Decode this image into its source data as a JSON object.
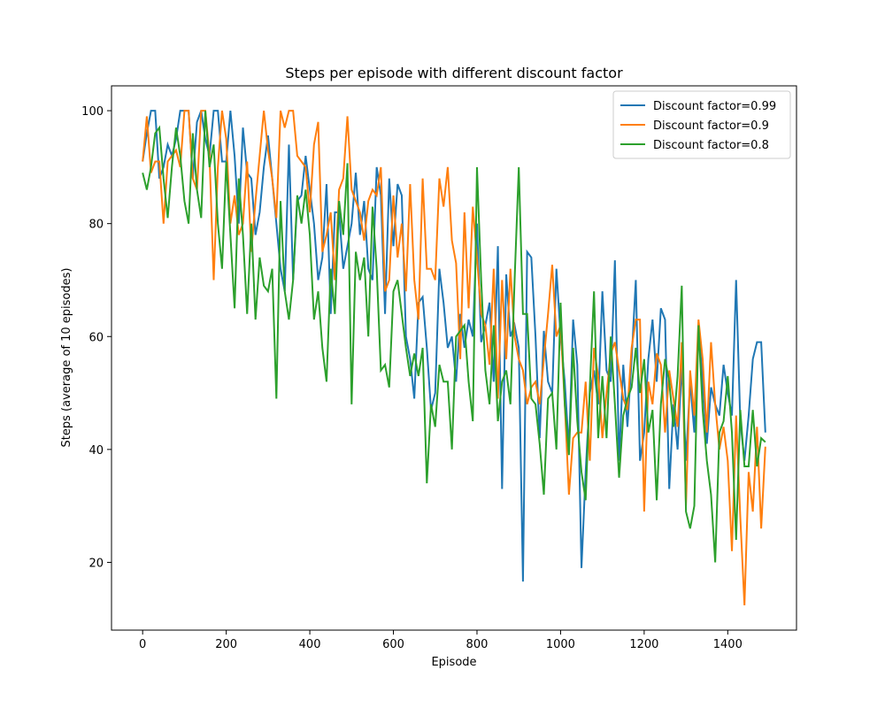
{
  "chart_data": {
    "type": "line",
    "title": "Steps per episode with different discount factor",
    "x_label": "Episode",
    "y_label": "Steps (average of 10 episodes)",
    "x": [
      0,
      10,
      20,
      30,
      40,
      50,
      60,
      70,
      80,
      90,
      100,
      110,
      120,
      130,
      140,
      150,
      160,
      170,
      180,
      190,
      200,
      210,
      220,
      230,
      240,
      250,
      260,
      270,
      280,
      290,
      300,
      310,
      320,
      330,
      340,
      350,
      360,
      370,
      380,
      390,
      400,
      410,
      420,
      430,
      440,
      450,
      460,
      470,
      480,
      490,
      500,
      510,
      520,
      530,
      540,
      550,
      560,
      570,
      580,
      590,
      600,
      610,
      620,
      630,
      640,
      650,
      660,
      670,
      680,
      690,
      700,
      710,
      720,
      730,
      740,
      750,
      760,
      770,
      780,
      790,
      800,
      810,
      820,
      830,
      840,
      850,
      860,
      870,
      880,
      890,
      900,
      910,
      920,
      930,
      940,
      950,
      960,
      970,
      980,
      990,
      1000,
      1010,
      1020,
      1030,
      1040,
      1050,
      1060,
      1070,
      1080,
      1090,
      1100,
      1110,
      1120,
      1130,
      1140,
      1150,
      1160,
      1170,
      1180,
      1190,
      1200,
      1210,
      1220,
      1230,
      1240,
      1250,
      1260,
      1270,
      1280,
      1290,
      1300,
      1310,
      1320,
      1330,
      1340,
      1350,
      1360,
      1370,
      1380,
      1390,
      1400,
      1410,
      1420,
      1430,
      1440,
      1450,
      1460,
      1470,
      1480,
      1490
    ],
    "series": [
      {
        "name": "Discount factor=0.99",
        "color": "#1f77b4",
        "values": [
          91,
          96,
          100,
          100,
          88,
          90,
          94,
          92,
          95,
          100,
          100,
          100,
          88,
          98,
          100,
          95,
          92,
          100,
          100,
          91,
          91,
          100,
          92,
          80,
          97,
          89,
          88,
          78,
          82,
          90,
          95.6,
          88,
          80,
          72,
          68,
          94,
          70,
          84,
          85,
          92,
          86,
          80,
          70,
          74,
          87,
          64,
          82,
          82,
          72,
          76,
          80,
          89,
          78,
          84,
          72,
          70,
          90,
          85,
          64,
          88,
          76,
          87,
          85,
          60,
          56,
          49,
          66,
          67,
          58,
          47,
          50,
          72,
          66,
          58,
          60,
          52,
          64,
          58,
          63,
          60,
          80,
          59,
          62,
          66,
          52,
          76,
          33,
          71,
          60,
          62,
          58,
          16.6,
          75,
          74,
          60,
          42,
          61,
          52,
          50,
          72,
          60,
          52,
          40,
          63,
          55,
          19,
          36,
          50,
          54,
          48,
          68,
          54,
          52,
          73.5,
          38,
          55,
          44,
          56,
          70,
          38,
          43,
          56,
          63,
          52,
          65,
          63,
          33,
          48,
          40,
          55,
          38,
          52,
          43,
          62,
          52,
          41,
          51,
          48,
          46,
          55,
          50,
          46,
          70,
          45,
          38,
          46,
          56,
          59,
          59,
          43
        ]
      },
      {
        "name": "Discount factor=0.9",
        "color": "#ff7f0e",
        "values": [
          91,
          99,
          89,
          91,
          91,
          80,
          91,
          92,
          93,
          90,
          100,
          100,
          88,
          86,
          100,
          100,
          92,
          70,
          90,
          100,
          95,
          80,
          85,
          78,
          80,
          91,
          75,
          84,
          92,
          100,
          93,
          88,
          81,
          100,
          97,
          100,
          100,
          92,
          91,
          90,
          82,
          94,
          98,
          75,
          78,
          82,
          70,
          86,
          88,
          99,
          86,
          84,
          82,
          77,
          84,
          86,
          85,
          90,
          68,
          70,
          85,
          74,
          80,
          68,
          87,
          70,
          63,
          88,
          72,
          72,
          70,
          88,
          83,
          90,
          77,
          73,
          56,
          82,
          65,
          83,
          74,
          64,
          62,
          55,
          72,
          49,
          70,
          56,
          72,
          60,
          56,
          54,
          48,
          51,
          52,
          48,
          56,
          64,
          72.7,
          60,
          62,
          48,
          32,
          42,
          43,
          43,
          52,
          38,
          58,
          53,
          42,
          50,
          57,
          59,
          54,
          49,
          47,
          58,
          63,
          63,
          29,
          52,
          48,
          57,
          55,
          43,
          54,
          49,
          44,
          59,
          30,
          54,
          46,
          63,
          56,
          43,
          59,
          48,
          40,
          44,
          38,
          22,
          46,
          28,
          12.4,
          36,
          29,
          44,
          26,
          40.5
        ]
      },
      {
        "name": "Discount factor=0.8",
        "color": "#2ca02c",
        "values": [
          89,
          86,
          90,
          96,
          97,
          88,
          81,
          90,
          97,
          92,
          84,
          80,
          96,
          86,
          81,
          100,
          90,
          94,
          80,
          72,
          91,
          78,
          65,
          88,
          78,
          64,
          80,
          63,
          74,
          69,
          68,
          72,
          49,
          84,
          68,
          63,
          70,
          85,
          80,
          86,
          78,
          63,
          68,
          58,
          52,
          72,
          64,
          84,
          78,
          90.7,
          48,
          75,
          70,
          74,
          60,
          83,
          72,
          54,
          55,
          51,
          68,
          70,
          64,
          58,
          53,
          57,
          53,
          58,
          34,
          48,
          44,
          55,
          52,
          52,
          40,
          60,
          61,
          62,
          52,
          45,
          90,
          70,
          54,
          48,
          62,
          45,
          52,
          54,
          48,
          70,
          90,
          64,
          64,
          49,
          48,
          41,
          32,
          49,
          50,
          40,
          66,
          48,
          39,
          58,
          45,
          36,
          31,
          51,
          68,
          42,
          53,
          42,
          60,
          48,
          35,
          46,
          49,
          51,
          58,
          50,
          56,
          43,
          47,
          31,
          48,
          56,
          52,
          44,
          53,
          69,
          29,
          26,
          30,
          62,
          47,
          38,
          32,
          20,
          43,
          45,
          53,
          43,
          24,
          47,
          37,
          37,
          47,
          37,
          42,
          41.3
        ]
      }
    ],
    "xlim": [
      -74.5,
      1564.5
    ],
    "xticks": [
      0,
      200,
      400,
      600,
      800,
      1000,
      1200,
      1400
    ],
    "ylim": [
      8.0,
      104.4
    ],
    "yticks": [
      20,
      40,
      60,
      80,
      100
    ],
    "grid": false,
    "legend": "upper right"
  }
}
